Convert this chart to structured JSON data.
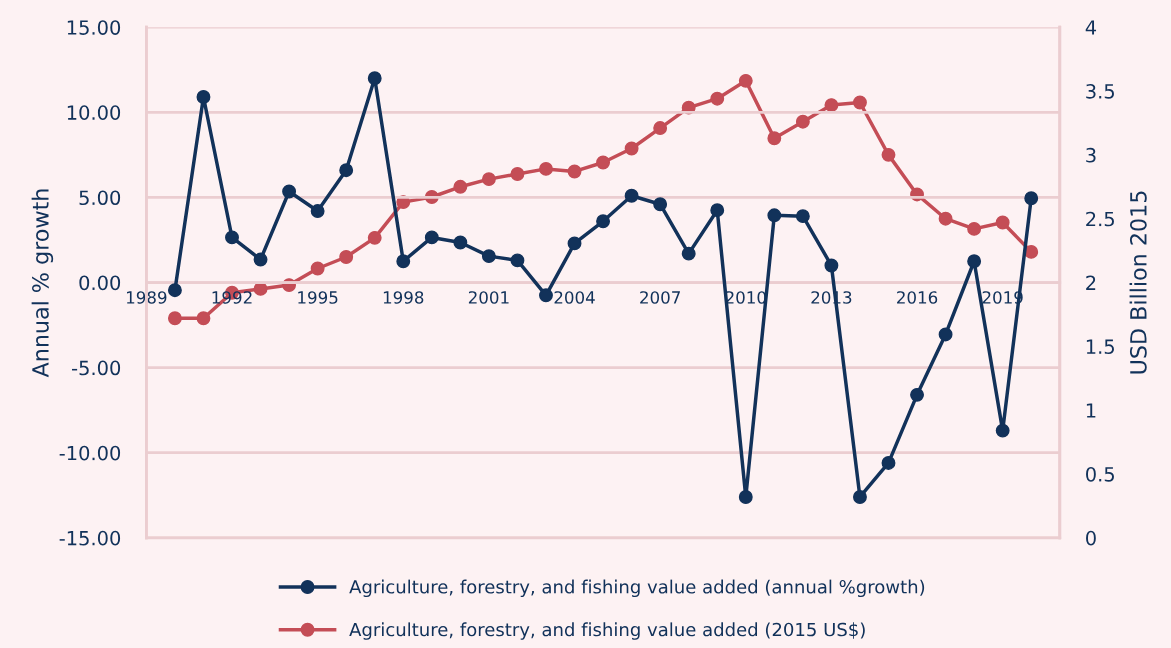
{
  "chart_data": {
    "type": "line",
    "xlabel": null,
    "ylabel": "Annual % growth",
    "y2label": "USD Billion 2015",
    "x": [
      1990,
      1991,
      1992,
      1993,
      1994,
      1995,
      1996,
      1997,
      1998,
      1999,
      2000,
      2001,
      2002,
      2003,
      2004,
      2005,
      2006,
      2007,
      2008,
      2009,
      2010,
      2011,
      2012,
      2013,
      2014,
      2015,
      2016,
      2017,
      2018,
      2019,
      2020
    ],
    "series": [
      {
        "name": "Agriculture, forestry, and fishing value added (annual %growth)",
        "color": "#12325a",
        "values": [
          -0.45,
          10.9,
          2.65,
          1.35,
          5.35,
          4.2,
          6.6,
          12.0,
          1.25,
          2.65,
          2.35,
          1.55,
          1.3,
          -0.75,
          2.3,
          3.6,
          5.1,
          4.6,
          1.7,
          4.25,
          -12.6,
          3.95,
          3.9,
          1.0,
          -12.6,
          -10.6,
          -6.6,
          -3.05,
          1.25,
          -8.7,
          4.95
        ]
      },
      {
        "name": "Agriculture, forestry, and fishing value added (2015 US$)",
        "color": "#c44d56",
        "axis": "y2",
        "values": [
          1.72,
          1.72,
          1.92,
          1.95,
          1.98,
          2.11,
          2.2,
          2.35,
          2.63,
          2.67,
          2.75,
          2.81,
          2.85,
          2.89,
          2.87,
          2.94,
          3.05,
          3.21,
          3.37,
          3.44,
          3.58,
          3.13,
          3.26,
          3.39,
          3.41,
          3.0,
          2.69,
          2.5,
          2.42,
          2.47,
          2.24
        ]
      }
    ],
    "xlim": [
      1989,
      2021
    ],
    "xticks": [
      1989,
      1992,
      1995,
      1998,
      2001,
      2004,
      2007,
      2010,
      2013,
      2016,
      2019
    ],
    "ylim": [
      -15,
      15
    ],
    "yticks": [
      {
        "value": -15,
        "label": "-15.00"
      },
      {
        "value": -10,
        "label": "-10.00"
      },
      {
        "value": -5,
        "label": "-5.00"
      },
      {
        "value": 0,
        "label": "0.00"
      },
      {
        "value": 5,
        "label": "5.00"
      },
      {
        "value": 10,
        "label": "10.00"
      },
      {
        "value": 15,
        "label": "15.00"
      }
    ],
    "y2lim": [
      0,
      4
    ],
    "y2ticks": [
      0,
      0.5,
      1,
      1.5,
      2,
      2.5,
      3,
      3.5,
      4
    ],
    "grid": "y",
    "legend": "bottom",
    "marker": "circle",
    "line_style": "solid"
  }
}
